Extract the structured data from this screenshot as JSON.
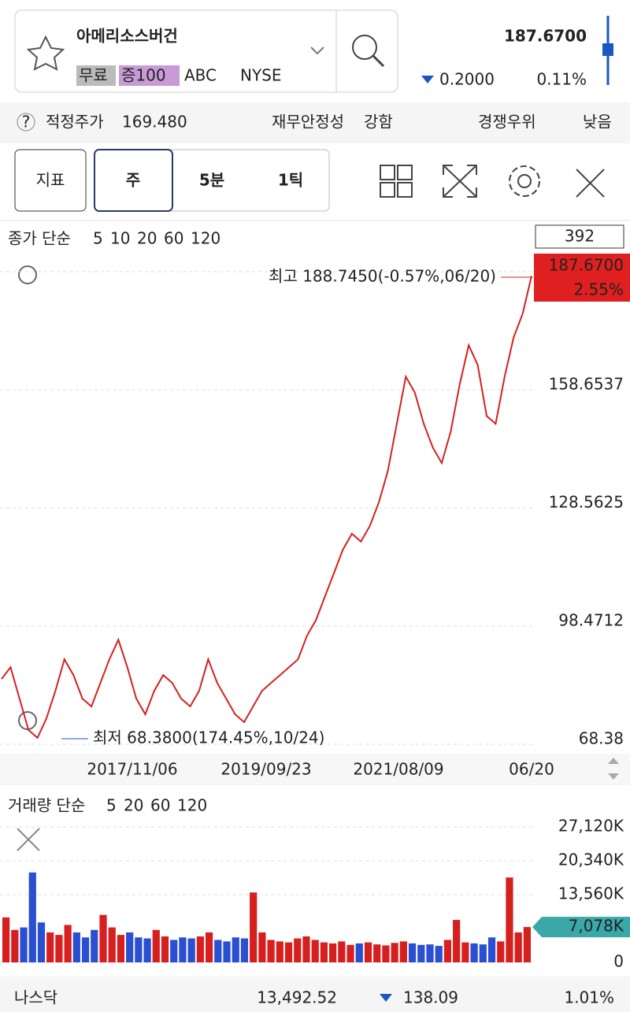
{
  "header": {
    "name": "아메리소스버건",
    "tags": [
      "무료",
      "증100",
      "ABC",
      "NYSE"
    ],
    "price": "187.6700",
    "change": "0.2000",
    "change_pct": "0.11%"
  },
  "info": {
    "items": [
      {
        "label": "적정주가",
        "value": "169.480"
      },
      {
        "label": "재무안정성",
        "value": "강함"
      },
      {
        "label": "경쟁우위",
        "value": "낮음"
      }
    ]
  },
  "toolbar": {
    "buttons": [
      "지표",
      "주",
      "5분",
      "1틱"
    ]
  },
  "chart_data": [
    {
      "type": "line",
      "legend_title": "종가 단순",
      "ma_labels": [
        {
          "value": 5,
          "color": "#1a1aa6"
        },
        {
          "value": 10,
          "color": "#1a1aa6"
        },
        {
          "value": 20,
          "color": "#e0a800"
        },
        {
          "value": 60,
          "color": "#1a8a1a"
        },
        {
          "value": 120,
          "color": "#777777"
        }
      ],
      "count_box": "392",
      "current_price": "187.6700",
      "current_pct": "2.55%",
      "annotations": {
        "high": "최고 188.7450(-0.57%,06/20)",
        "low": "최저 68.3800(174.45%,10/24)"
      },
      "ylim": [
        68.38,
        188.745
      ],
      "yticks": [
        68.38,
        98.4712,
        128.5625,
        158.6537
      ],
      "x_labels": [
        "2017/11/06",
        "2019/09/23",
        "2021/08/09",
        "06/20"
      ],
      "color": "#d62020",
      "values": [
        85,
        88,
        80,
        72,
        70,
        75,
        82,
        90,
        86,
        80,
        78,
        84,
        90,
        95,
        88,
        80,
        76,
        82,
        86,
        84,
        80,
        78,
        82,
        90,
        84,
        80,
        76,
        74,
        78,
        82,
        84,
        86,
        88,
        90,
        96,
        100,
        106,
        112,
        118,
        122,
        120,
        124,
        130,
        138,
        150,
        162,
        158,
        150,
        144,
        140,
        148,
        160,
        170,
        165,
        152,
        150,
        162,
        172,
        178,
        187.67
      ]
    },
    {
      "type": "bar",
      "legend_title": "거래량 단순",
      "ma_labels": [
        {
          "value": 5,
          "color": "#c0208f"
        },
        {
          "value": 20,
          "color": "#e0a800"
        },
        {
          "value": 60,
          "color": "#1a8a1a"
        },
        {
          "value": 120,
          "color": "#777777"
        }
      ],
      "ylim": [
        0,
        27120
      ],
      "yticks": [
        {
          "value": 0,
          "label": "0"
        },
        {
          "value": 13560,
          "label": "13,560K"
        },
        {
          "value": 20340,
          "label": "20,340K"
        },
        {
          "value": 27120,
          "label": "27,120K"
        }
      ],
      "current": {
        "value": 7078,
        "label": "7,078K"
      },
      "values": [
        9000,
        6500,
        7000,
        18000,
        8000,
        6000,
        5500,
        7500,
        6000,
        5000,
        6500,
        9500,
        7000,
        5500,
        6000,
        5000,
        4800,
        6500,
        5200,
        4500,
        5000,
        4800,
        5200,
        6000,
        4500,
        4200,
        5000,
        4800,
        14000,
        6000,
        4500,
        4200,
        4000,
        4800,
        5200,
        4500,
        4000,
        3800,
        4200,
        3500,
        3800,
        4000,
        3600,
        3400,
        3900,
        4200,
        3800,
        3500,
        3600,
        3300,
        4500,
        8500,
        4000,
        3800,
        3600,
        5000,
        4200,
        17000,
        6000,
        7078
      ]
    }
  ],
  "footer": {
    "index": "나스닥",
    "value": "13,492.52",
    "change": "138.09",
    "pct": "1.01%"
  }
}
